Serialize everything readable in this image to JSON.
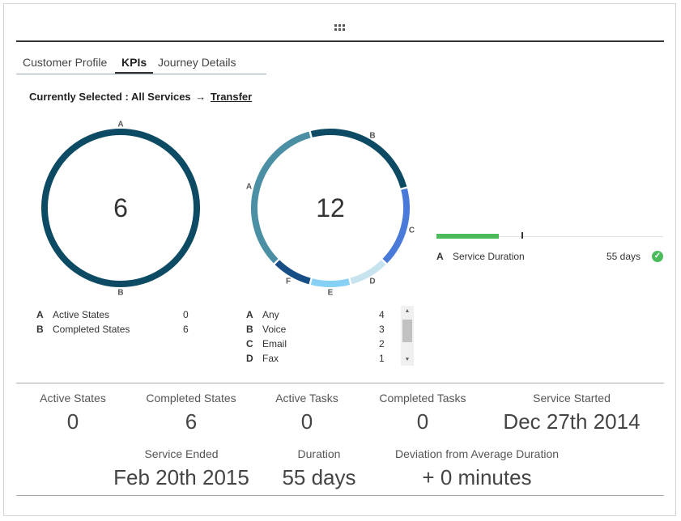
{
  "tabs": [
    {
      "label": "Customer Profile"
    },
    {
      "label": "KPIs"
    },
    {
      "label": "Journey Details"
    }
  ],
  "selection": {
    "prefix": "Currently Selected : All Services",
    "arrow": "→",
    "link": "Transfer"
  },
  "colors": {
    "dark_teal": "#0d4a63",
    "teal": "#4b8fa5",
    "light_blue": "#c6e3ee",
    "sky_blue": "#86cff5",
    "navy": "#174e86",
    "royal_blue": "#4a7ad9",
    "green": "#4cbb5c"
  },
  "chart_data": [
    {
      "type": "pie",
      "donut": true,
      "center": "6",
      "slices": [
        {
          "letter": "A",
          "label": "Active States",
          "value": 0
        },
        {
          "letter": "B",
          "label": "Completed States",
          "value": 6
        }
      ]
    },
    {
      "type": "pie",
      "donut": true,
      "center": "12",
      "slices": [
        {
          "letter": "A",
          "label": "Any",
          "value": 4
        },
        {
          "letter": "B",
          "label": "Voice",
          "value": 3
        },
        {
          "letter": "C",
          "label": "Email",
          "value": 2
        },
        {
          "letter": "D",
          "label": "Fax",
          "value": 1
        },
        {
          "letter": "E",
          "value": 1
        },
        {
          "letter": "F",
          "value": 1
        }
      ]
    },
    {
      "type": "bar",
      "items": [
        {
          "letter": "A",
          "label": "Service Duration",
          "value_text": "55 days",
          "fill_fraction": 0.275,
          "marker_fraction": 0.375,
          "status_icon": "check-circle-icon"
        }
      ]
    }
  ],
  "stats": [
    {
      "label": "Active States",
      "value": "0"
    },
    {
      "label": "Completed States",
      "value": "6"
    },
    {
      "label": "Active Tasks",
      "value": "0"
    },
    {
      "label": "Completed Tasks",
      "value": "0"
    },
    {
      "label": "Service Started",
      "value": "Dec 27th 2014"
    },
    {
      "label": "Service Ended",
      "value": "Feb 20th 2015"
    },
    {
      "label": "Duration",
      "value": "55 days"
    },
    {
      "label": "Deviation from Average Duration",
      "value": "+ 0 minutes"
    }
  ],
  "icons": {
    "drag": "drag-handle-icon",
    "check": "check-circle-icon",
    "scroll_up": "arrow-up-icon",
    "scroll_down": "arrow-down-icon"
  }
}
